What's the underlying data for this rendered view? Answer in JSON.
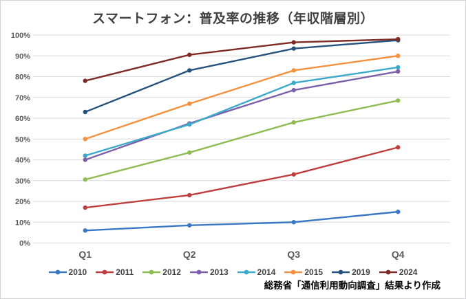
{
  "chart_data": {
    "type": "line",
    "title": "スマートフォン：普及率の推移（年収階層別）",
    "source_note": "総務省「通信利用動向調査」結果より作成",
    "categories": [
      "Q1",
      "Q2",
      "Q3",
      "Q4"
    ],
    "yticks": [
      "0%",
      "10%",
      "20%",
      "30%",
      "40%",
      "50%",
      "60%",
      "70%",
      "80%",
      "90%",
      "100%"
    ],
    "ylim": [
      0,
      100
    ],
    "grid": true,
    "legend_position": "bottom",
    "series": [
      {
        "name": "2010",
        "color": "#3B78C3",
        "values": [
          6,
          8.5,
          10,
          15
        ]
      },
      {
        "name": "2011",
        "color": "#BE3E3E",
        "values": [
          17,
          23,
          33,
          46
        ]
      },
      {
        "name": "2012",
        "color": "#8FBC52",
        "values": [
          30.5,
          43.5,
          58,
          68.5
        ]
      },
      {
        "name": "2013",
        "color": "#7C5FA9",
        "values": [
          40,
          57.5,
          73.5,
          82.5
        ]
      },
      {
        "name": "2014",
        "color": "#3BAACB",
        "values": [
          42,
          57,
          77,
          84.5
        ]
      },
      {
        "name": "2015",
        "color": "#F4913E",
        "values": [
          50,
          67,
          83,
          90
        ]
      },
      {
        "name": "2019",
        "color": "#24527C",
        "values": [
          63,
          83,
          93.5,
          97.5
        ]
      },
      {
        "name": "2024",
        "color": "#7E2B25",
        "values": [
          78,
          90.5,
          96.5,
          98
        ]
      }
    ]
  },
  "style": {
    "background": "#FFFFFF",
    "border_color": "#D2D2D7",
    "gridline_color": "#D9D9D9",
    "title_color": "#404040",
    "axis_label_color": "#595959",
    "legend_text_color": "#404040",
    "source_text_color": "#000000"
  }
}
